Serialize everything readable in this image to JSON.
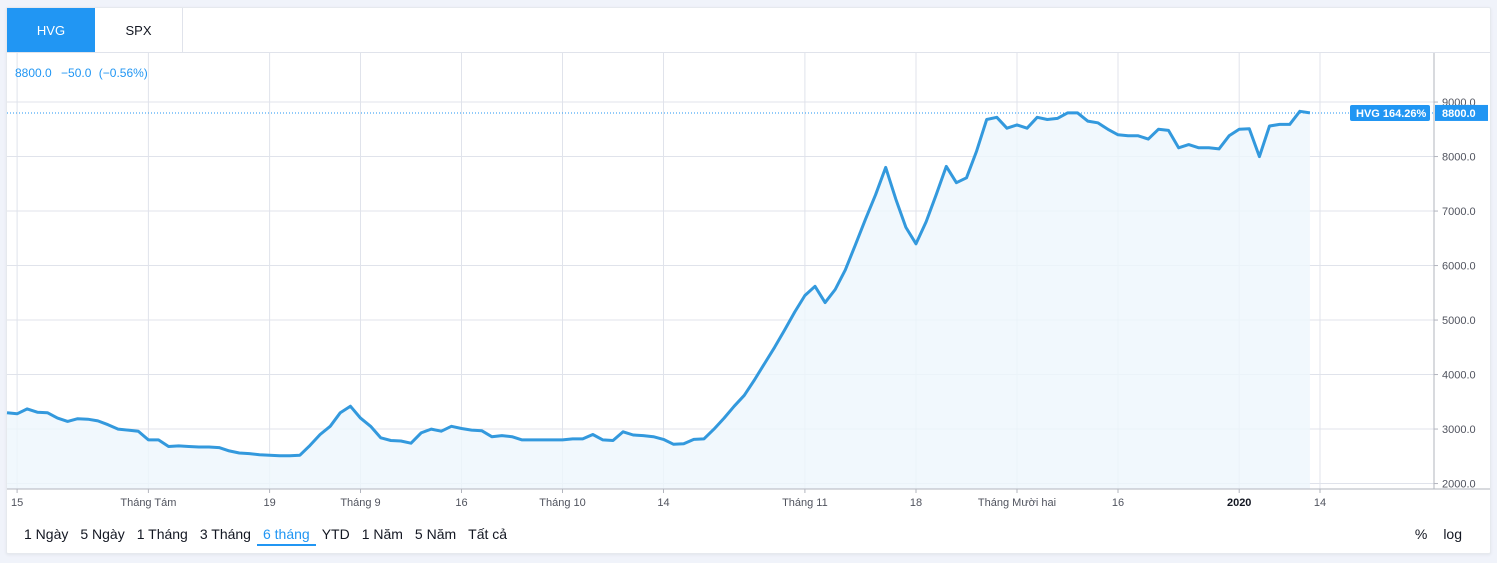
{
  "tabs": [
    {
      "label": "HVG",
      "active": true
    },
    {
      "label": "SPX",
      "active": false
    }
  ],
  "legend": {
    "price": "8800.0",
    "change": "−50.0",
    "change_pct": "(−0.56%)"
  },
  "price_badge": {
    "label": "HVG 164.26%",
    "value": "8800.0"
  },
  "colors": {
    "accent": "#2196f3",
    "line": "#3399dd",
    "grid": "#e0e3eb"
  },
  "ranges": [
    {
      "label": "1 Ngày",
      "active": false
    },
    {
      "label": "5 Ngày",
      "active": false
    },
    {
      "label": "1 Tháng",
      "active": false
    },
    {
      "label": "3 Tháng",
      "active": false
    },
    {
      "label": "6 tháng",
      "active": true
    },
    {
      "label": "YTD",
      "active": false
    },
    {
      "label": "1 Năm",
      "active": false
    },
    {
      "label": "5 Năm",
      "active": false
    },
    {
      "label": "Tất cả",
      "active": false
    }
  ],
  "scale_options": [
    "%",
    "log"
  ],
  "chart_data": {
    "type": "area",
    "title": "",
    "xlabel": "",
    "ylabel": "",
    "ylim": [
      1900,
      9900
    ],
    "y_ticks": [
      2000,
      3000,
      4000,
      5000,
      6000,
      7000,
      8000,
      9000
    ],
    "y_tick_labels": [
      "2000.0",
      "3000.0",
      "4000.0",
      "5000.0",
      "6000.0",
      "7000.0",
      "8000.0",
      "9000.0"
    ],
    "x_ticks": [
      {
        "i": 1,
        "label": "15",
        "bold": false
      },
      {
        "i": 14,
        "label": "Tháng Tám",
        "bold": false
      },
      {
        "i": 26,
        "label": "19",
        "bold": false
      },
      {
        "i": 35,
        "label": "Tháng 9",
        "bold": false
      },
      {
        "i": 45,
        "label": "16",
        "bold": false
      },
      {
        "i": 55,
        "label": "Tháng 10",
        "bold": false
      },
      {
        "i": 65,
        "label": "14",
        "bold": false
      },
      {
        "i": 79,
        "label": "Tháng 11",
        "bold": false
      },
      {
        "i": 90,
        "label": "18",
        "bold": false
      },
      {
        "i": 100,
        "label": "Tháng Mười hai",
        "bold": false
      },
      {
        "i": 110,
        "label": "16",
        "bold": false
      },
      {
        "i": 122,
        "label": "2020",
        "bold": true
      },
      {
        "i": 130,
        "label": "14",
        "bold": false
      }
    ],
    "x_extent": 140,
    "series": [
      {
        "values": [
          3300,
          3280,
          3370,
          3310,
          3300,
          3200,
          3140,
          3190,
          3180,
          3150,
          3080,
          3000,
          2980,
          2960,
          2800,
          2800,
          2680,
          2690,
          2680,
          2670,
          2670,
          2660,
          2600,
          2560,
          2550,
          2530,
          2520,
          2510,
          2510,
          2520,
          2700,
          2900,
          3050,
          3300,
          3420,
          3200,
          3050,
          2840,
          2790,
          2780,
          2740,
          2930,
          3000,
          2960,
          3050,
          3010,
          2980,
          2970,
          2860,
          2880,
          2860,
          2800,
          2800,
          2800,
          2800,
          2800,
          2820,
          2820,
          2900,
          2800,
          2790,
          2950,
          2890,
          2880,
          2860,
          2810,
          2720,
          2730,
          2810,
          2820,
          3000,
          3200,
          3420,
          3620,
          3900,
          4200,
          4500,
          4820,
          5150,
          5450,
          5620,
          5320,
          5560,
          5920,
          6380,
          6850,
          7300,
          7800,
          7220,
          6700,
          6400,
          6800,
          7300,
          7820,
          7520,
          7610,
          8100,
          8680,
          8720,
          8520,
          8580,
          8520,
          8720,
          8680,
          8700,
          8800,
          8800,
          8650,
          8620,
          8500,
          8400,
          8380,
          8380,
          8320,
          8500,
          8480,
          8160,
          8220,
          8160,
          8160,
          8140,
          8380,
          8500,
          8510,
          8000,
          8560,
          8590,
          8590,
          8830,
          8800
        ]
      }
    ],
    "last_value": 8800,
    "grid": true,
    "price_line": true
  }
}
